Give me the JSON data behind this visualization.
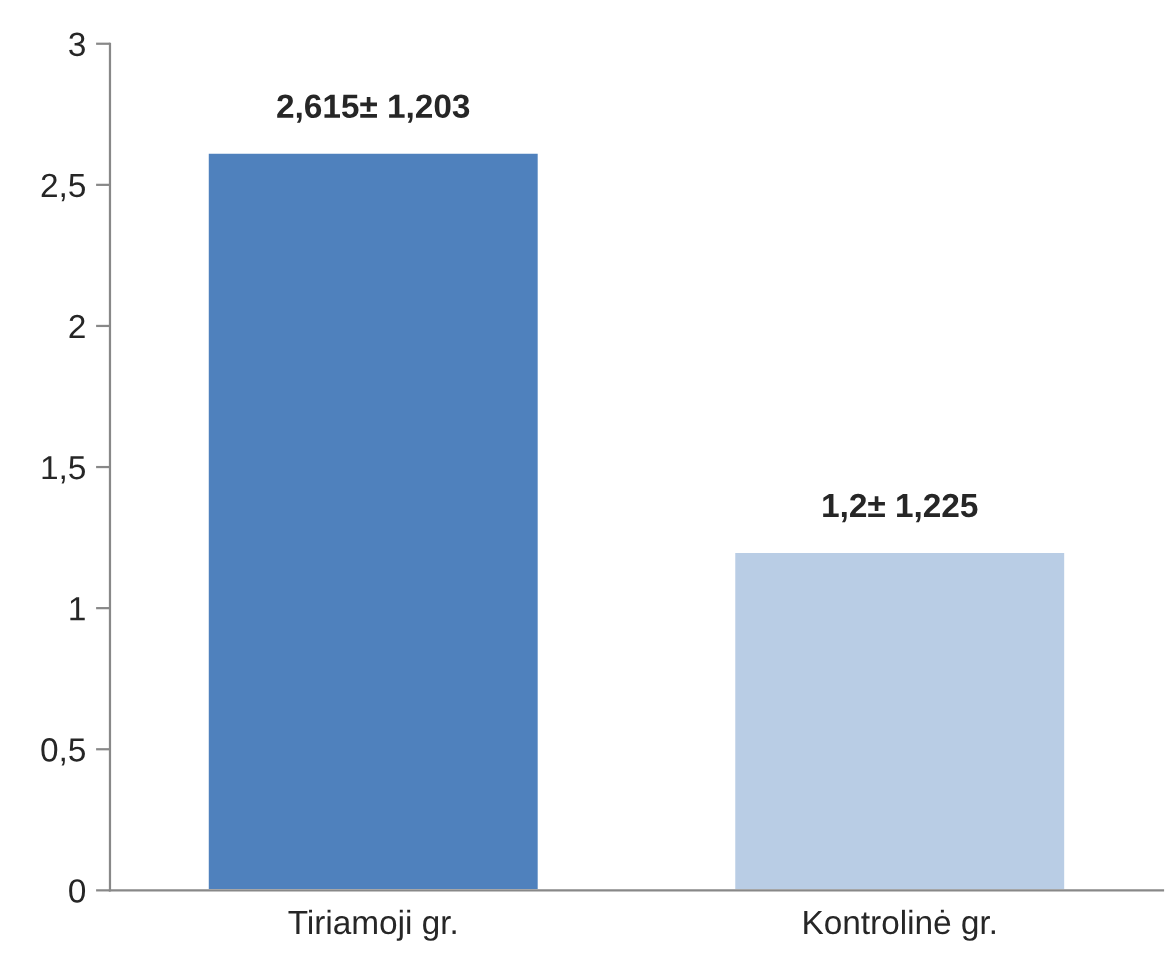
{
  "chart_data": {
    "type": "bar",
    "categories": [
      "Tiriamoji gr.",
      "Kontrolinė gr."
    ],
    "values": [
      2.615,
      1.2
    ],
    "colors": [
      "#4f81bd",
      "#b9cde5"
    ],
    "value_labels": [
      "2,615± 1,203",
      "1,2± 1,225"
    ],
    "ylim": [
      0,
      3
    ],
    "yticks": [
      0,
      {
        "value": 0.5,
        "label": "0,5"
      },
      1,
      {
        "value": 1.5,
        "label": "1,5"
      },
      2,
      {
        "value": 2.5,
        "label": "2,5"
      },
      3
    ],
    "grid": false
  }
}
